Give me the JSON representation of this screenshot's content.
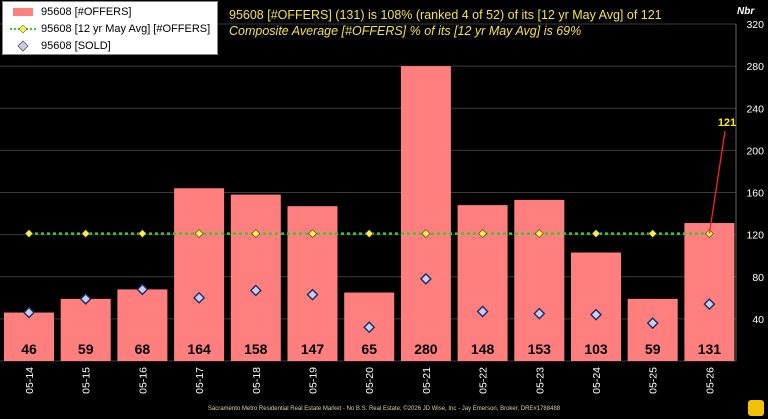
{
  "header": {
    "line1": "95608 [#OFFERS] (131) is 108% (ranked 4 of 52) of its [12 yr May Avg] of 121",
    "line2": "Composite Average [#OFFERS] % of its [12 yr May Avg] is 69%"
  },
  "legend": {
    "offers": "95608 [#OFFERS]",
    "avg": "95608 [12 yr May Avg] [#OFFERS]",
    "sold": "95608 [SOLD]"
  },
  "axis_unit": "Nbr",
  "footer": "Sacramento Metro Residential Real Estate Market - No B.S. Real Estate, ©2026 JD Wise, Inc - Jay Emerson, Broker, DRE#1788488",
  "colors": {
    "bar": "#ff7f7f",
    "avg_line": "#33cc33",
    "avg_marker": "#ffee44",
    "sold_marker": "#c8d0e8",
    "callout": "#ff2222",
    "callout_text": "#ffee00"
  },
  "chart_data": {
    "type": "bar",
    "categories": [
      "05-14",
      "05-15",
      "05-16",
      "05-17",
      "05-18",
      "05-19",
      "05-20",
      "05-21",
      "05-22",
      "05-23",
      "05-24",
      "05-25",
      "05-26"
    ],
    "series": [
      {
        "name": "95608 [#OFFERS]",
        "type": "bar",
        "values": [
          46,
          59,
          68,
          164,
          158,
          147,
          65,
          280,
          148,
          153,
          103,
          59,
          131
        ]
      },
      {
        "name": "95608 [12 yr May Avg] [#OFFERS]",
        "type": "line",
        "values": [
          121,
          121,
          121,
          121,
          121,
          121,
          121,
          121,
          121,
          121,
          121,
          121,
          121
        ]
      },
      {
        "name": "95608 [SOLD]",
        "type": "scatter",
        "values": [
          46,
          59,
          68,
          60,
          67,
          63,
          32,
          78,
          47,
          45,
          44,
          36,
          54
        ]
      }
    ],
    "callout_value": "121",
    "ylim": [
      0,
      320
    ],
    "yticks": [
      0,
      40,
      80,
      120,
      160,
      200,
      240,
      280,
      320
    ],
    "y_axis_position": "right",
    "grid": true,
    "legend_position": "top-left"
  }
}
